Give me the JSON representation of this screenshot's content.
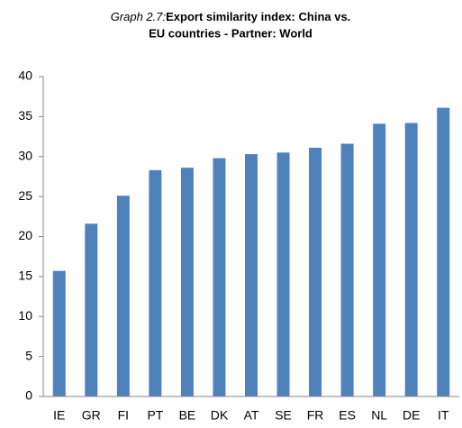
{
  "chart_data": {
    "type": "bar",
    "title_label": "Graph 2.7:",
    "title": [
      "Export similarity index: China vs.",
      "EU countries - Partner: World"
    ],
    "categories": [
      "IE",
      "GR",
      "FI",
      "PT",
      "BE",
      "DK",
      "AT",
      "SE",
      "FR",
      "ES",
      "NL",
      "DE",
      "IT"
    ],
    "values": [
      15.7,
      21.6,
      25.1,
      28.3,
      28.6,
      29.8,
      30.3,
      30.5,
      31.1,
      31.6,
      34.1,
      34.2,
      36.1
    ],
    "color": "#4f81bd",
    "ylim": [
      0,
      40
    ],
    "yticks": [
      0,
      5,
      10,
      15,
      20,
      25,
      30,
      35,
      40
    ],
    "grid": false
  }
}
